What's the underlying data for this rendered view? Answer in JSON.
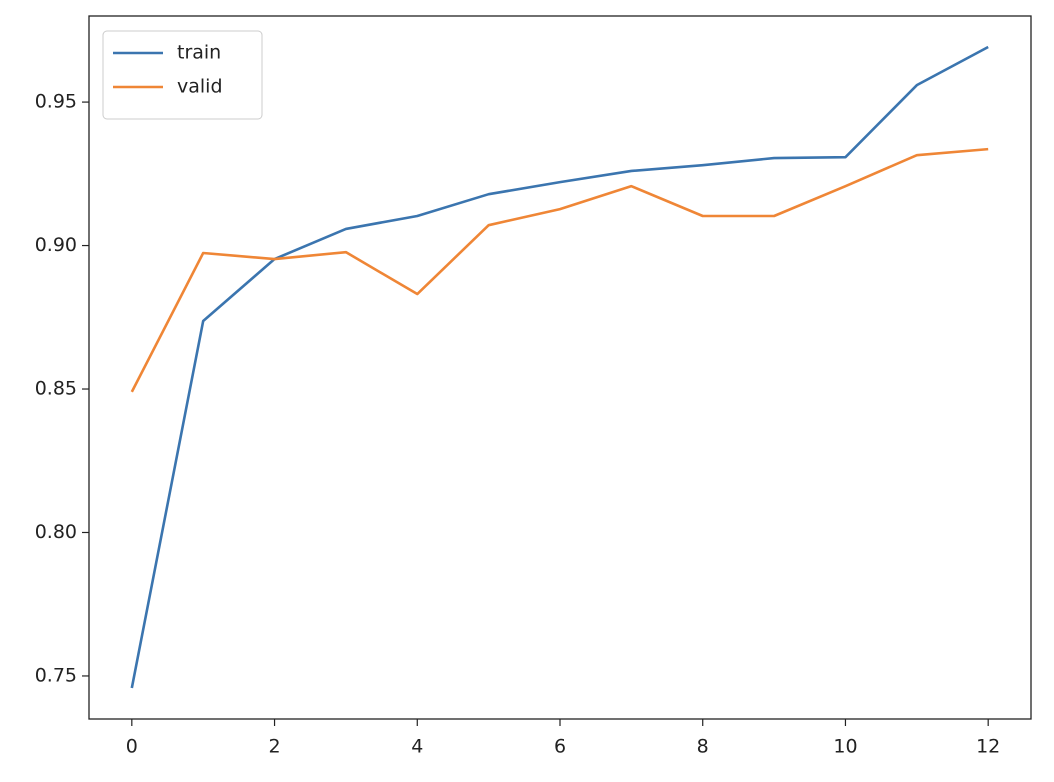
{
  "chart_data": {
    "type": "line",
    "x": [
      0,
      1,
      2,
      3,
      4,
      5,
      6,
      7,
      8,
      9,
      10,
      11,
      12
    ],
    "series": [
      {
        "name": "train",
        "color": "#3b75af",
        "values": [
          0.7458,
          0.8737,
          0.8953,
          0.9058,
          0.9103,
          0.9179,
          0.9221,
          0.926,
          0.928,
          0.9305,
          0.9308,
          0.9559,
          0.9692
        ]
      },
      {
        "name": "valid",
        "color": "#ef8636",
        "values": [
          0.849,
          0.8974,
          0.8953,
          0.8977,
          0.8831,
          0.9071,
          0.9127,
          0.9207,
          0.9103,
          0.9103,
          0.9207,
          0.9315,
          0.9336
        ]
      }
    ],
    "xlim": [
      -0.6,
      12.6
    ],
    "xticks": [
      0,
      2,
      4,
      6,
      8,
      10,
      12
    ],
    "ylim": [
      0.735,
      0.98
    ],
    "yticks": [
      0.75,
      {
        "value": 0.8,
        "label": "0.80"
      },
      0.85,
      {
        "value": 0.9,
        "label": "0.90"
      },
      0.95
    ],
    "grid": false,
    "legend": "upper left"
  }
}
